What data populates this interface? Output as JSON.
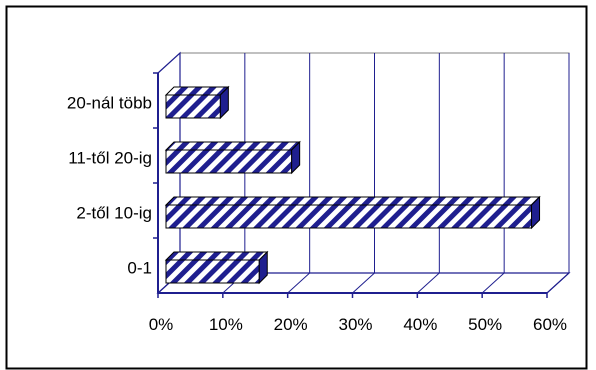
{
  "chart_data": {
    "type": "bar",
    "orientation": "horizontal",
    "style": "3d",
    "categories": [
      "20-nál több",
      "11-től 20-ig",
      "2-től 10-ig",
      "0-1"
    ],
    "values": [
      0.09,
      0.2,
      0.57,
      0.15
    ],
    "xlim": [
      0,
      0.6
    ],
    "x_ticks": [
      "0%",
      "10%",
      "20%",
      "30%",
      "40%",
      "50%",
      "60%"
    ],
    "grid": true,
    "legend": "none",
    "bar_color": "#1f1f8f",
    "bar_pattern": "diagonal-stripes"
  }
}
